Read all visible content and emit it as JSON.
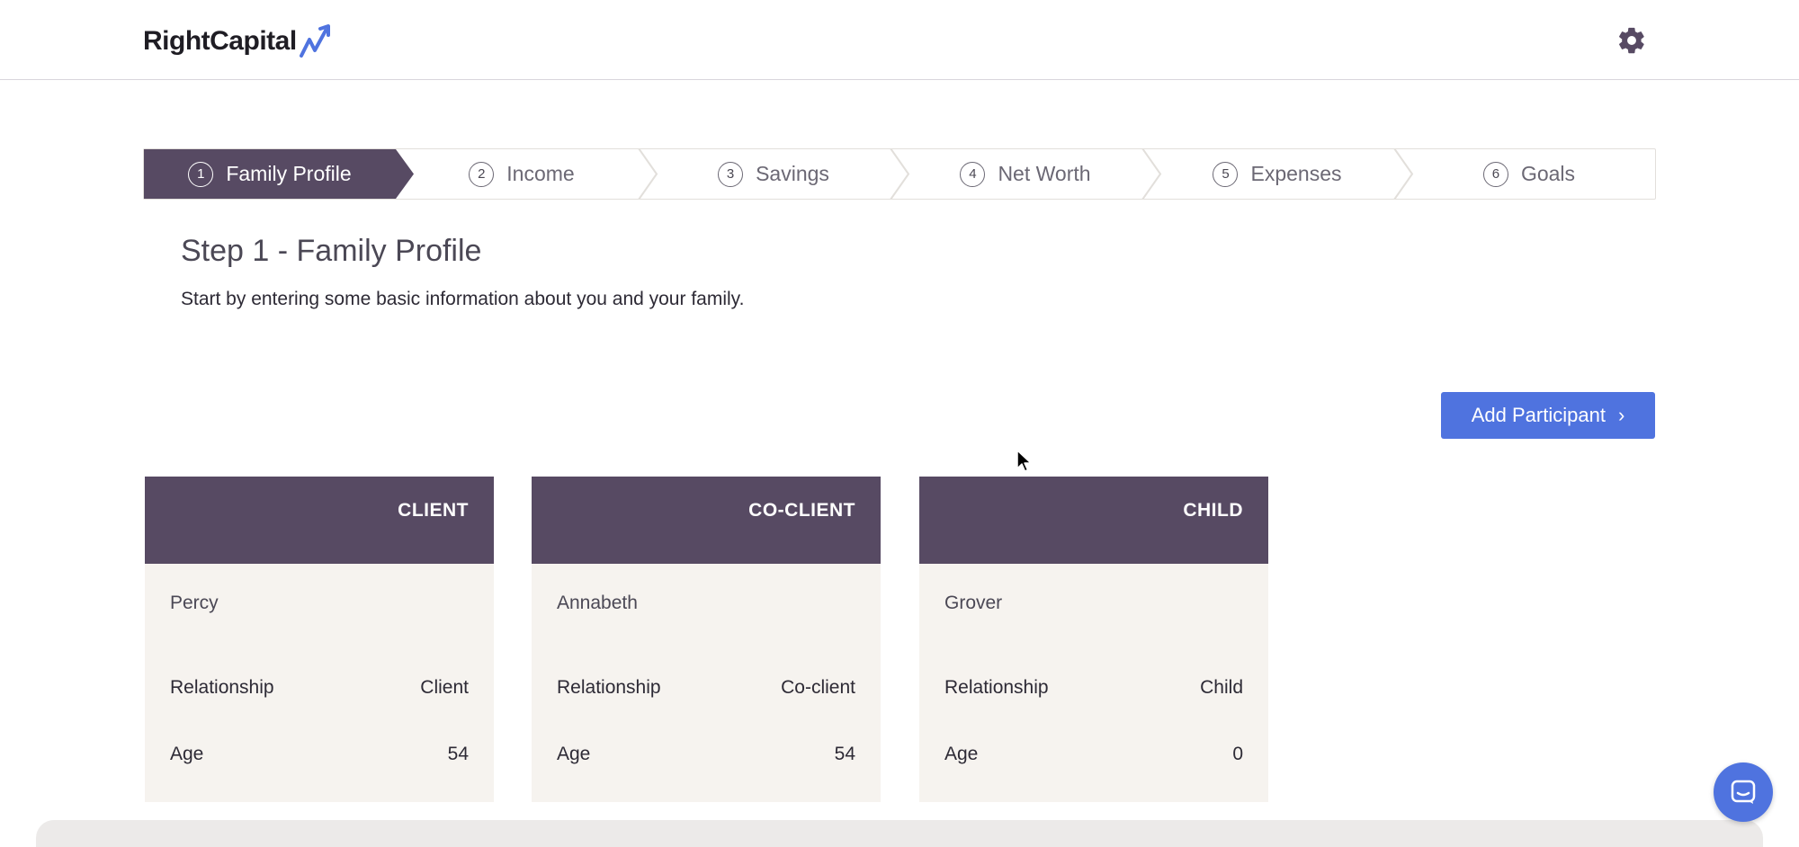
{
  "header": {
    "logo_text": "RightCapital",
    "settings_icon": "gear-icon"
  },
  "stepper": {
    "steps": [
      {
        "number": "1",
        "label": "Family Profile",
        "active": true
      },
      {
        "number": "2",
        "label": "Income",
        "active": false
      },
      {
        "number": "3",
        "label": "Savings",
        "active": false
      },
      {
        "number": "4",
        "label": "Net Worth",
        "active": false
      },
      {
        "number": "5",
        "label": "Expenses",
        "active": false
      },
      {
        "number": "6",
        "label": "Goals",
        "active": false
      }
    ]
  },
  "main": {
    "title": "Step 1 - Family Profile",
    "description": "Start by entering some basic information about you and your family.",
    "add_button_label": "Add Participant",
    "add_button_chevron": "›"
  },
  "participants": [
    {
      "role": "CLIENT",
      "name": "Percy",
      "relationship_label": "Relationship",
      "relationship": "Client",
      "age_label": "Age",
      "age": "54"
    },
    {
      "role": "CO-CLIENT",
      "name": "Annabeth",
      "relationship_label": "Relationship",
      "relationship": "Co-client",
      "age_label": "Age",
      "age": "54"
    },
    {
      "role": "CHILD",
      "name": "Grover",
      "relationship_label": "Relationship",
      "relationship": "Child",
      "age_label": "Age",
      "age": "0"
    }
  ],
  "colors": {
    "brand_purple": "#574a63",
    "accent_blue": "#4f73df",
    "card_bg": "#f6f3ef"
  },
  "chat": {
    "icon": "chat-icon"
  }
}
